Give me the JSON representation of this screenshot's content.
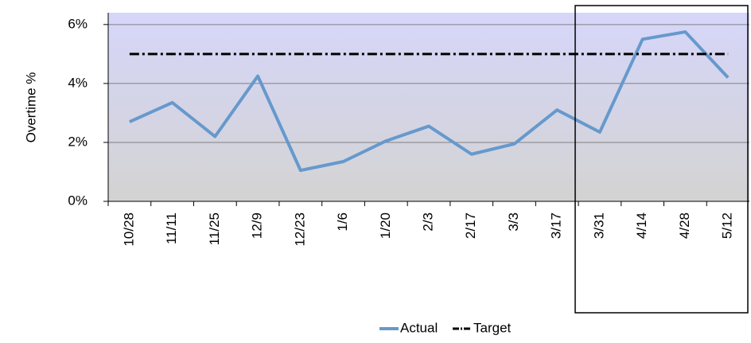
{
  "chart_data": {
    "type": "line",
    "y_label": "Overtime %",
    "categories": [
      "10/28",
      "11/11",
      "11/25",
      "12/9",
      "12/23",
      "1/6",
      "1/20",
      "2/3",
      "2/17",
      "3/3",
      "3/17",
      "3/31",
      "4/14",
      "4/28",
      "5/12"
    ],
    "series": [
      {
        "name": "Actual",
        "color": "#6699cc",
        "linestyle": "solid",
        "values": [
          2.7,
          3.35,
          2.2,
          4.25,
          1.05,
          1.35,
          2.05,
          2.55,
          1.6,
          1.95,
          3.1,
          2.35,
          5.5,
          5.75,
          4.2
        ]
      },
      {
        "name": "Target",
        "color": "#000000",
        "linestyle": "dashdot",
        "values": [
          5,
          5,
          5,
          5,
          5,
          5,
          5,
          5,
          5,
          5,
          5,
          5,
          5,
          5,
          5
        ]
      }
    ],
    "ylim": [
      0,
      6.4
    ],
    "yticks": [
      {
        "value": 0,
        "label": "0%"
      },
      {
        "value": 2,
        "label": "2%"
      },
      {
        "value": 4,
        "label": "4%"
      },
      {
        "value": 6,
        "label": "6%"
      }
    ],
    "grid": true,
    "legend": "bottom"
  }
}
